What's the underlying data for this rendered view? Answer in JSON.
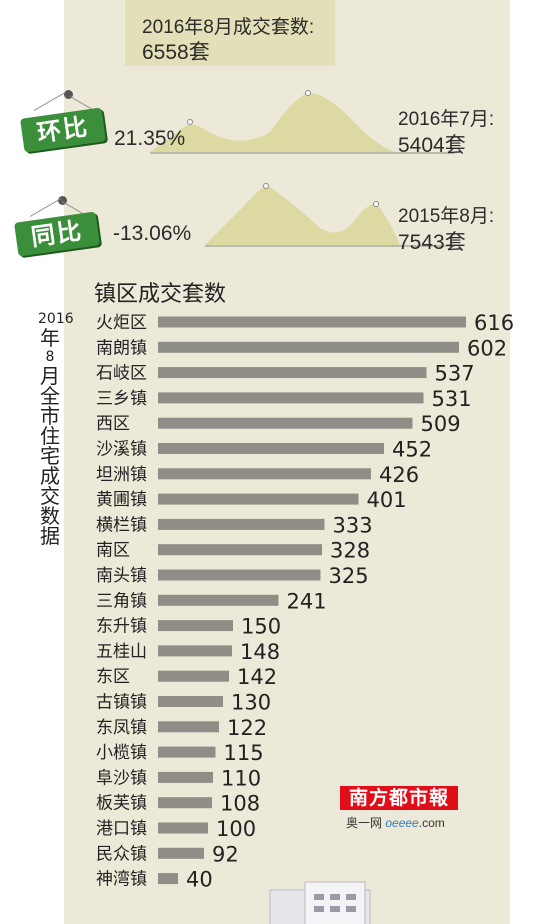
{
  "header": {
    "current_label": "2016年8月成交套数:",
    "current_value": "6558套"
  },
  "mom": {
    "tag": "环比",
    "pct": "21.35%",
    "ref_label": "2016年7月:",
    "ref_value": "5404套"
  },
  "yoy": {
    "tag": "同比",
    "pct": "-13.06%",
    "ref_label": "2015年8月:",
    "ref_value": "7543套"
  },
  "vertical_title": "2016年8月全市住宅成交数据",
  "logo": {
    "name": "南方都市報",
    "sub_prefix": "奥一网",
    "sub_site": "oeeee",
    "sub_suffix": ".com"
  },
  "colors": {
    "bar": "#8e8d86",
    "tag_green": "#3c8f3a",
    "mountain_fill": "#ddd9a3",
    "logo_red": "#e10d18"
  },
  "chart_data": {
    "type": "bar",
    "orientation": "horizontal",
    "title": "镇区成交套数",
    "categories": [
      "火炬区",
      "南朗镇",
      "石岐区",
      "三乡镇",
      "西区",
      "沙溪镇",
      "坦洲镇",
      "黄圃镇",
      "横栏镇",
      "南区",
      "南头镇",
      "三角镇",
      "东升镇",
      "五桂山",
      "东区",
      "古镇镇",
      "东凤镇",
      "小榄镇",
      "阜沙镇",
      "板芙镇",
      "港口镇",
      "民众镇",
      "神湾镇"
    ],
    "values": [
      616,
      602,
      537,
      531,
      509,
      452,
      426,
      401,
      333,
      328,
      325,
      241,
      150,
      148,
      142,
      130,
      122,
      115,
      110,
      108,
      100,
      92,
      40
    ],
    "xlim": [
      0,
      616
    ]
  }
}
